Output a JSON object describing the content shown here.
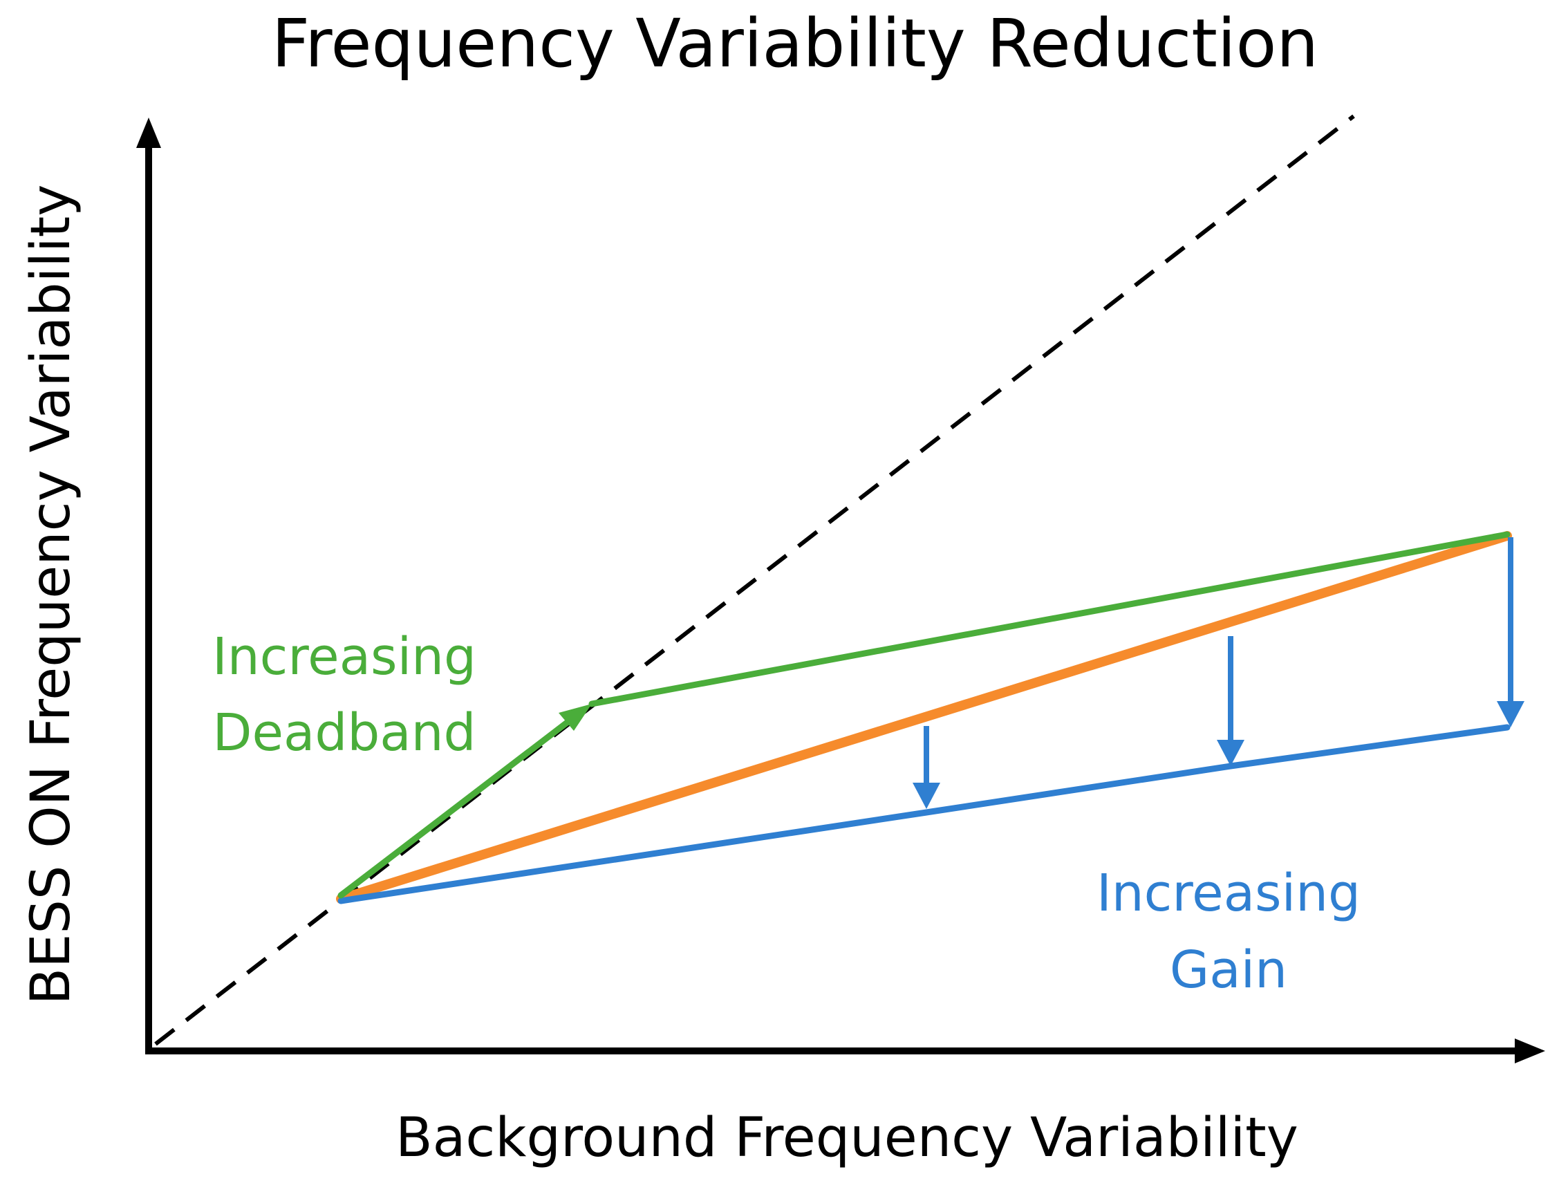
{
  "title": "Frequency Variability Reduction",
  "x_axis_label": "Background Frequency Variability",
  "y_axis_label": "BESS ON Frequency Variability",
  "annotations": {
    "deadband": {
      "line1": "Increasing",
      "line2": "Deadband"
    },
    "gain": {
      "line1": "Increasing",
      "line2": "Gain"
    }
  },
  "colors": {
    "axis": "#000000",
    "reference_line": "#000000",
    "deadband": "#4aad3a",
    "baseline": "#f68b2c",
    "gain": "#2f7fd1"
  },
  "legend_semantics": {
    "reference_line": "no-reduction reference (dashed diagonal)",
    "baseline": "baseline BESS response",
    "deadband": "increasing deadband response",
    "gain": "increasing gain response"
  }
}
